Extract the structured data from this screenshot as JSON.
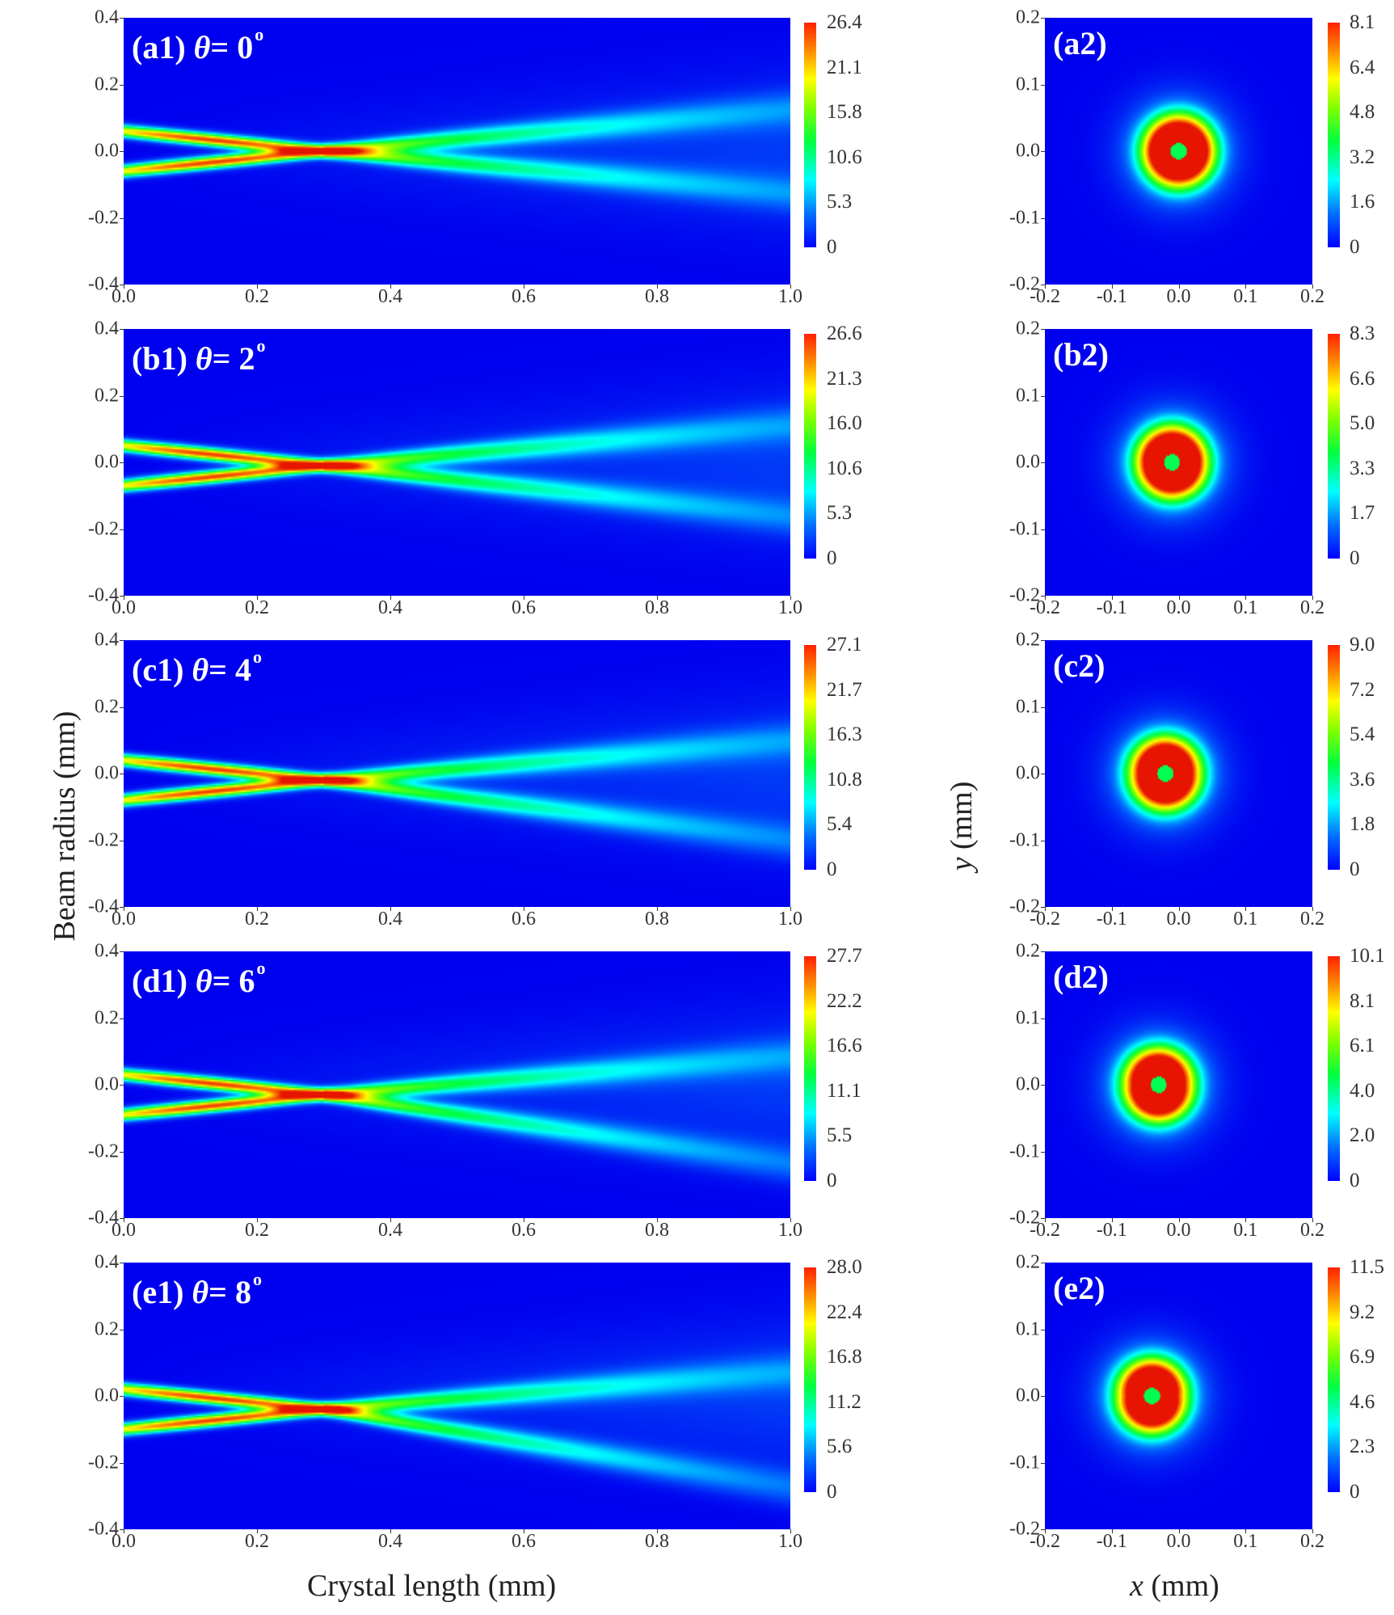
{
  "figure": {
    "left_ylabel": "Beam radius (mm)",
    "left_xlabel": "Crystal length (mm)",
    "right_ylabel_var": "y",
    "right_ylabel_unit": " (mm)",
    "right_xlabel_var": "x",
    "right_xlabel_unit": " (mm)"
  },
  "chart_data": [
    {
      "type": "heatmap",
      "panel": "a1",
      "title": "(a1) θ = 0°",
      "theta_deg": 0,
      "xlabel": "Crystal length (mm)",
      "ylabel": "Beam radius (mm)",
      "xlim": [
        0.0,
        1.0
      ],
      "ylim": [
        -0.4,
        0.4
      ],
      "xticks": [
        "0.0",
        "0.2",
        "0.4",
        "0.6",
        "0.8",
        "1.0"
      ],
      "yticks": [
        "0.4",
        "0.2",
        "0.0",
        "-0.2",
        "-0.4"
      ],
      "colorbar": [
        "26.4",
        "21.1",
        "15.8",
        "10.6",
        "5.3",
        "0"
      ],
      "cmax": 26.4,
      "focus_x": 0.3,
      "focus_y": 0.0
    },
    {
      "type": "heatmap",
      "panel": "a2",
      "title": "(a2)",
      "xlabel": "x (mm)",
      "ylabel": "y (mm)",
      "xlim": [
        -0.2,
        0.2
      ],
      "ylim": [
        -0.2,
        0.2
      ],
      "xticks": [
        "-0.2",
        "-0.1",
        "0.0",
        "0.1",
        "0.2"
      ],
      "yticks": [
        "0.2",
        "0.1",
        "0.0",
        "-0.1",
        "-0.2"
      ],
      "colorbar": [
        "8.1",
        "6.4",
        "4.8",
        "3.2",
        "1.6",
        "0"
      ],
      "cmax": 8.1,
      "center_x": 0.0
    },
    {
      "type": "heatmap",
      "panel": "b1",
      "title": "(b1) θ = 2°",
      "theta_deg": 2,
      "xlabel": "Crystal length (mm)",
      "ylabel": "Beam radius (mm)",
      "xlim": [
        0.0,
        1.0
      ],
      "ylim": [
        -0.4,
        0.4
      ],
      "xticks": [
        "0.0",
        "0.2",
        "0.4",
        "0.6",
        "0.8",
        "1.0"
      ],
      "yticks": [
        "0.4",
        "0.2",
        "0.0",
        "-0.2",
        "-0.4"
      ],
      "colorbar": [
        "26.6",
        "21.3",
        "16.0",
        "10.6",
        "5.3",
        "0"
      ],
      "cmax": 26.6,
      "focus_x": 0.3,
      "focus_y": -0.01
    },
    {
      "type": "heatmap",
      "panel": "b2",
      "title": "(b2)",
      "xlabel": "x (mm)",
      "ylabel": "y (mm)",
      "xlim": [
        -0.2,
        0.2
      ],
      "ylim": [
        -0.2,
        0.2
      ],
      "xticks": [
        "-0.2",
        "-0.1",
        "0.0",
        "0.1",
        "0.2"
      ],
      "yticks": [
        "0.2",
        "0.1",
        "0.0",
        "-0.1",
        "-0.2"
      ],
      "colorbar": [
        "8.3",
        "6.6",
        "5.0",
        "3.3",
        "1.7",
        "0"
      ],
      "cmax": 8.3,
      "center_x": -0.01
    },
    {
      "type": "heatmap",
      "panel": "c1",
      "title": "(c1) θ = 4°",
      "theta_deg": 4,
      "xlabel": "Crystal length (mm)",
      "ylabel": "Beam radius (mm)",
      "xlim": [
        0.0,
        1.0
      ],
      "ylim": [
        -0.4,
        0.4
      ],
      "xticks": [
        "0.0",
        "0.2",
        "0.4",
        "0.6",
        "0.8",
        "1.0"
      ],
      "yticks": [
        "0.4",
        "0.2",
        "0.0",
        "-0.2",
        "-0.4"
      ],
      "colorbar": [
        "27.1",
        "21.7",
        "16.3",
        "10.8",
        "5.4",
        "0"
      ],
      "cmax": 27.1,
      "focus_x": 0.3,
      "focus_y": -0.02
    },
    {
      "type": "heatmap",
      "panel": "c2",
      "title": "(c2)",
      "xlabel": "x (mm)",
      "ylabel": "y (mm)",
      "xlim": [
        -0.2,
        0.2
      ],
      "ylim": [
        -0.2,
        0.2
      ],
      "xticks": [
        "-0.2",
        "-0.1",
        "0.0",
        "0.1",
        "0.2"
      ],
      "yticks": [
        "0.2",
        "0.1",
        "0.0",
        "-0.1",
        "-0.2"
      ],
      "colorbar": [
        "9.0",
        "7.2",
        "5.4",
        "3.6",
        "1.8",
        "0"
      ],
      "cmax": 9.0,
      "center_x": -0.02
    },
    {
      "type": "heatmap",
      "panel": "d1",
      "title": "(d1) θ = 6°",
      "theta_deg": 6,
      "xlabel": "Crystal length (mm)",
      "ylabel": "Beam radius (mm)",
      "xlim": [
        0.0,
        1.0
      ],
      "ylim": [
        -0.4,
        0.4
      ],
      "xticks": [
        "0.0",
        "0.2",
        "0.4",
        "0.6",
        "0.8",
        "1.0"
      ],
      "yticks": [
        "0.4",
        "0.2",
        "0.0",
        "-0.2",
        "-0.4"
      ],
      "colorbar": [
        "27.7",
        "22.2",
        "16.6",
        "11.1",
        "5.5",
        "0"
      ],
      "cmax": 27.7,
      "focus_x": 0.3,
      "focus_y": -0.03
    },
    {
      "type": "heatmap",
      "panel": "d2",
      "title": "(d2)",
      "xlabel": "x (mm)",
      "ylabel": "y (mm)",
      "xlim": [
        -0.2,
        0.2
      ],
      "ylim": [
        -0.2,
        0.2
      ],
      "xticks": [
        "-0.2",
        "-0.1",
        "0.0",
        "0.1",
        "0.2"
      ],
      "yticks": [
        "0.2",
        "0.1",
        "0.0",
        "-0.1",
        "-0.2"
      ],
      "colorbar": [
        "10.1",
        "8.1",
        "6.1",
        "4.0",
        "2.0",
        "0"
      ],
      "cmax": 10.1,
      "center_x": -0.03
    },
    {
      "type": "heatmap",
      "panel": "e1",
      "title": "(e1) θ = 8°",
      "theta_deg": 8,
      "xlabel": "Crystal length (mm)",
      "ylabel": "Beam radius (mm)",
      "xlim": [
        0.0,
        1.0
      ],
      "ylim": [
        -0.4,
        0.4
      ],
      "xticks": [
        "0.0",
        "0.2",
        "0.4",
        "0.6",
        "0.8",
        "1.0"
      ],
      "yticks": [
        "0.4",
        "0.2",
        "0.0",
        "-0.2",
        "-0.4"
      ],
      "colorbar": [
        "28.0",
        "22.4",
        "16.8",
        "11.2",
        "5.6",
        "0"
      ],
      "cmax": 28.0,
      "focus_x": 0.3,
      "focus_y": -0.04
    },
    {
      "type": "heatmap",
      "panel": "e2",
      "title": "(e2)",
      "xlabel": "x (mm)",
      "ylabel": "y (mm)",
      "xlim": [
        -0.2,
        0.2
      ],
      "ylim": [
        -0.2,
        0.2
      ],
      "xticks": [
        "-0.2",
        "-0.1",
        "0.0",
        "0.1",
        "0.2"
      ],
      "yticks": [
        "0.2",
        "0.1",
        "0.0",
        "-0.1",
        "-0.2"
      ],
      "colorbar": [
        "11.5",
        "9.2",
        "6.9",
        "4.6",
        "2.3",
        "0"
      ],
      "cmax": 11.5,
      "center_x": -0.04
    }
  ],
  "rows": [
    {
      "left_label": "(a1)",
      "theta_sym": "θ",
      "theta_eq": "= 0",
      "deg": "o",
      "right_label": "(a2)"
    },
    {
      "left_label": "(b1)",
      "theta_sym": "θ",
      "theta_eq": "= 2",
      "deg": "o",
      "right_label": "(b2)"
    },
    {
      "left_label": "(c1)",
      "theta_sym": "θ",
      "theta_eq": "= 4",
      "deg": "o",
      "right_label": "(c2)"
    },
    {
      "left_label": "(d1)",
      "theta_sym": "θ",
      "theta_eq": "= 6",
      "deg": "o",
      "right_label": "(d2)"
    },
    {
      "left_label": "(e1)",
      "theta_sym": "θ",
      "theta_eq": "= 8",
      "deg": "o",
      "right_label": "(e2)"
    }
  ]
}
